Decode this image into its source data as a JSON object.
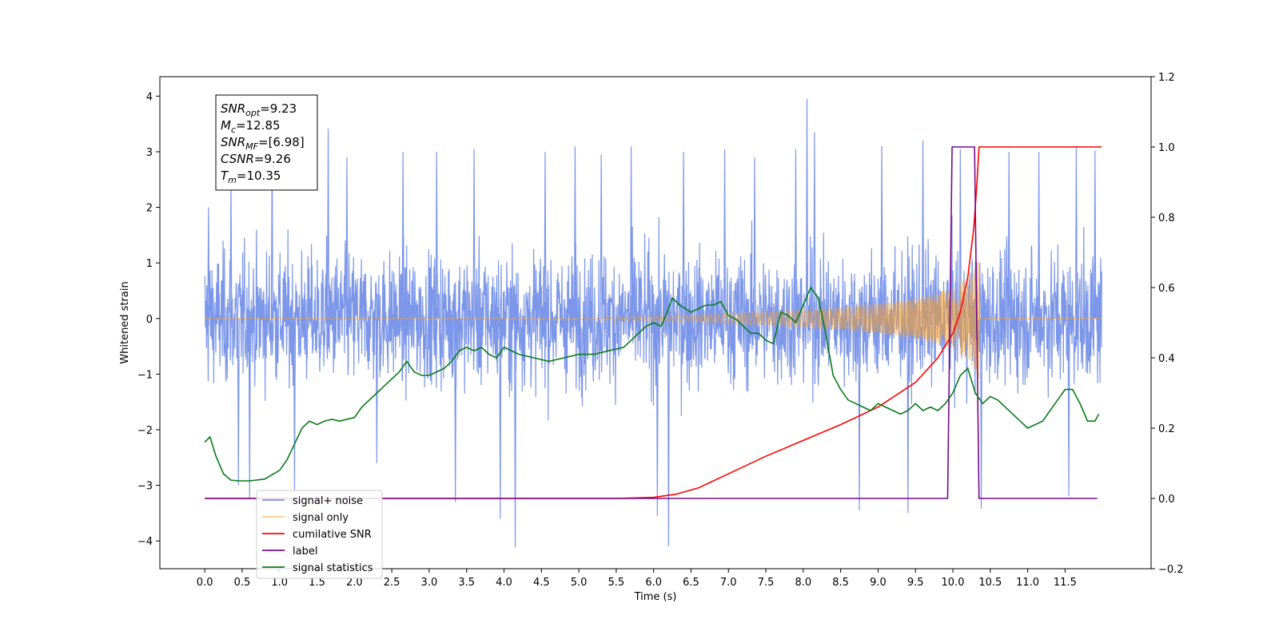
{
  "chart_data": {
    "type": "line",
    "xlabel": "Time (s)",
    "ylabel": "Whitened strain",
    "xlim": [
      -0.6,
      12.65
    ],
    "xticks": [
      0.0,
      0.5,
      1.0,
      1.5,
      2.0,
      2.5,
      3.0,
      3.5,
      4.0,
      4.5,
      5.0,
      5.5,
      6.0,
      6.5,
      7.0,
      7.5,
      8.0,
      8.5,
      9.0,
      9.5,
      10.0,
      10.5,
      11.0,
      11.5
    ],
    "xtick_labels": [
      "0.0",
      "0.5",
      "1.0",
      "1.5",
      "2.0",
      "2.5",
      "3.0",
      "3.5",
      "4.0",
      "4.5",
      "5.0",
      "5.5",
      "6.0",
      "6.5",
      "7.0",
      "7.5",
      "8.0",
      "8.5",
      "9.0",
      "9.5",
      "10.0",
      "10.5",
      "11.0",
      "11.5"
    ],
    "ylim_left": [
      -4.5,
      4.35
    ],
    "yticks_left": [
      -4,
      -3,
      -2,
      -1,
      0,
      1,
      2,
      3,
      4
    ],
    "ytick_labels_left": [
      "−4",
      "−3",
      "−2",
      "−1",
      "0",
      "1",
      "2",
      "3",
      "4"
    ],
    "ylim_right": [
      -0.2,
      1.2
    ],
    "yticks_right": [
      -0.2,
      0.0,
      0.2,
      0.4,
      0.6,
      0.8,
      1.0,
      1.2
    ],
    "ytick_labels_right": [
      "−0.2",
      "0.0",
      "0.2",
      "0.4",
      "0.6",
      "0.8",
      "1.0",
      "1.2"
    ],
    "grid": false,
    "legend_position": "lower-left",
    "annotation": {
      "lines": [
        {
          "symbol": "SNR",
          "sub": "opt",
          "value": "=9.23"
        },
        {
          "symbol": "M",
          "sub": "c",
          "value": "=12.85"
        },
        {
          "symbol": "SNR",
          "sub": "MF",
          "value": "=[6.98]"
        },
        {
          "symbol": "CSNR",
          "sub": "",
          "value": "=9.26"
        },
        {
          "symbol": "T",
          "sub": "m",
          "value": "=10.35"
        }
      ]
    },
    "series": [
      {
        "name": "signal+ noise",
        "color": "#7590e8",
        "axis": "left",
        "style": "noise",
        "x_range": [
          0.0,
          11.99
        ],
        "envelope_p95": 1.35,
        "peaks": [
          {
            "x": 0.05,
            "y": 2.0
          },
          {
            "x": 0.35,
            "y": 2.5
          },
          {
            "x": 0.45,
            "y": -3.0
          },
          {
            "x": 0.6,
            "y": -3.25
          },
          {
            "x": 0.9,
            "y": 3.05
          },
          {
            "x": 1.2,
            "y": -3.1
          },
          {
            "x": 1.65,
            "y": 3.42
          },
          {
            "x": 1.9,
            "y": 2.9
          },
          {
            "x": 2.3,
            "y": -2.6
          },
          {
            "x": 2.65,
            "y": 3.0
          },
          {
            "x": 3.1,
            "y": 3.0
          },
          {
            "x": 3.35,
            "y": -3.3
          },
          {
            "x": 3.6,
            "y": 3.05
          },
          {
            "x": 3.95,
            "y": -3.6
          },
          {
            "x": 4.15,
            "y": -4.12
          },
          {
            "x": 4.55,
            "y": 3.0
          },
          {
            "x": 4.95,
            "y": 3.1
          },
          {
            "x": 5.3,
            "y": 2.95
          },
          {
            "x": 5.7,
            "y": 3.1
          },
          {
            "x": 6.05,
            "y": -3.55
          },
          {
            "x": 6.2,
            "y": -4.1
          },
          {
            "x": 6.4,
            "y": 3.0
          },
          {
            "x": 6.95,
            "y": 3.05
          },
          {
            "x": 7.35,
            "y": 2.9
          },
          {
            "x": 7.9,
            "y": 3.05
          },
          {
            "x": 8.05,
            "y": 3.95
          },
          {
            "x": 8.15,
            "y": 3.35
          },
          {
            "x": 8.75,
            "y": -3.45
          },
          {
            "x": 9.05,
            "y": 3.1
          },
          {
            "x": 9.4,
            "y": -3.5
          },
          {
            "x": 9.6,
            "y": 3.2
          },
          {
            "x": 10.1,
            "y": 3.05
          },
          {
            "x": 10.38,
            "y": -3.42
          },
          {
            "x": 10.75,
            "y": 3.0
          },
          {
            "x": 11.15,
            "y": 3.0
          },
          {
            "x": 11.55,
            "y": -3.2
          },
          {
            "x": 11.65,
            "y": 3.1
          },
          {
            "x": 11.9,
            "y": 3.02
          }
        ]
      },
      {
        "name": "signal only",
        "color": "#ffa01e",
        "axis": "left",
        "style": "chirp",
        "envelope": [
          [
            0.0,
            0.0
          ],
          [
            5.0,
            0.02
          ],
          [
            6.5,
            0.06
          ],
          [
            7.5,
            0.12
          ],
          [
            8.0,
            0.16
          ],
          [
            8.5,
            0.2
          ],
          [
            9.0,
            0.27
          ],
          [
            9.5,
            0.36
          ],
          [
            10.0,
            0.55
          ],
          [
            10.2,
            0.75
          ],
          [
            10.3,
            0.95
          ],
          [
            10.35,
            1.1
          ],
          [
            10.36,
            0.0
          ],
          [
            11.99,
            0.0
          ]
        ]
      },
      {
        "name": "cumilative SNR",
        "color": "#ff0000",
        "axis": "right",
        "style": "line",
        "x": [
          0.0,
          5.5,
          6.0,
          6.3,
          6.6,
          7.0,
          7.5,
          8.0,
          8.5,
          9.0,
          9.5,
          9.8,
          10.0,
          10.1,
          10.2,
          10.28,
          10.32,
          10.35,
          11.99
        ],
        "y": [
          0.0,
          0.0,
          0.003,
          0.012,
          0.03,
          0.07,
          0.12,
          0.165,
          0.21,
          0.26,
          0.33,
          0.4,
          0.47,
          0.53,
          0.63,
          0.77,
          0.89,
          1.0,
          1.0
        ]
      },
      {
        "name": "label",
        "color": "#740a8c",
        "axis": "right",
        "style": "line",
        "x": [
          0.0,
          9.93,
          9.99,
          10.29,
          10.35,
          11.93
        ],
        "y": [
          0.0,
          0.0,
          1.0,
          1.0,
          0.0,
          0.0
        ]
      },
      {
        "name": "signal statistics",
        "color": "#0a7a1a",
        "axis": "right",
        "style": "line",
        "x": [
          0.0,
          0.07,
          0.15,
          0.25,
          0.35,
          0.45,
          0.6,
          0.8,
          1.0,
          1.1,
          1.2,
          1.3,
          1.4,
          1.5,
          1.6,
          1.7,
          1.8,
          2.0,
          2.1,
          2.2,
          2.3,
          2.4,
          2.5,
          2.6,
          2.7,
          2.8,
          2.9,
          3.0,
          3.1,
          3.2,
          3.3,
          3.4,
          3.5,
          3.6,
          3.7,
          3.8,
          3.9,
          4.0,
          4.2,
          4.4,
          4.6,
          4.8,
          5.0,
          5.2,
          5.4,
          5.6,
          5.8,
          5.9,
          6.0,
          6.1,
          6.2,
          6.25,
          6.35,
          6.5,
          6.6,
          6.7,
          6.8,
          6.9,
          7.0,
          7.1,
          7.2,
          7.3,
          7.4,
          7.5,
          7.6,
          7.7,
          7.8,
          7.9,
          8.0,
          8.1,
          8.2,
          8.3,
          8.4,
          8.5,
          8.6,
          8.7,
          8.8,
          8.9,
          9.0,
          9.1,
          9.2,
          9.3,
          9.4,
          9.5,
          9.6,
          9.7,
          9.8,
          9.9,
          10.0,
          10.1,
          10.2,
          10.3,
          10.4,
          10.5,
          10.6,
          10.7,
          10.8,
          10.9,
          11.0,
          11.1,
          11.2,
          11.3,
          11.4,
          11.5,
          11.6,
          11.7,
          11.8,
          11.9,
          11.95
        ],
        "y": [
          0.16,
          0.175,
          0.12,
          0.07,
          0.052,
          0.05,
          0.05,
          0.055,
          0.08,
          0.11,
          0.155,
          0.2,
          0.22,
          0.21,
          0.22,
          0.225,
          0.22,
          0.23,
          0.26,
          0.28,
          0.3,
          0.32,
          0.34,
          0.36,
          0.39,
          0.36,
          0.35,
          0.35,
          0.36,
          0.37,
          0.39,
          0.42,
          0.43,
          0.42,
          0.43,
          0.41,
          0.4,
          0.43,
          0.41,
          0.4,
          0.39,
          0.4,
          0.41,
          0.41,
          0.42,
          0.43,
          0.47,
          0.49,
          0.5,
          0.49,
          0.54,
          0.57,
          0.55,
          0.53,
          0.54,
          0.55,
          0.55,
          0.56,
          0.52,
          0.51,
          0.49,
          0.47,
          0.47,
          0.45,
          0.44,
          0.53,
          0.52,
          0.5,
          0.55,
          0.6,
          0.57,
          0.47,
          0.35,
          0.31,
          0.28,
          0.27,
          0.26,
          0.25,
          0.27,
          0.26,
          0.25,
          0.24,
          0.25,
          0.27,
          0.25,
          0.26,
          0.25,
          0.27,
          0.3,
          0.35,
          0.37,
          0.3,
          0.27,
          0.29,
          0.28,
          0.26,
          0.24,
          0.22,
          0.2,
          0.21,
          0.22,
          0.25,
          0.28,
          0.31,
          0.31,
          0.27,
          0.22,
          0.22,
          0.24
        ]
      }
    ]
  }
}
